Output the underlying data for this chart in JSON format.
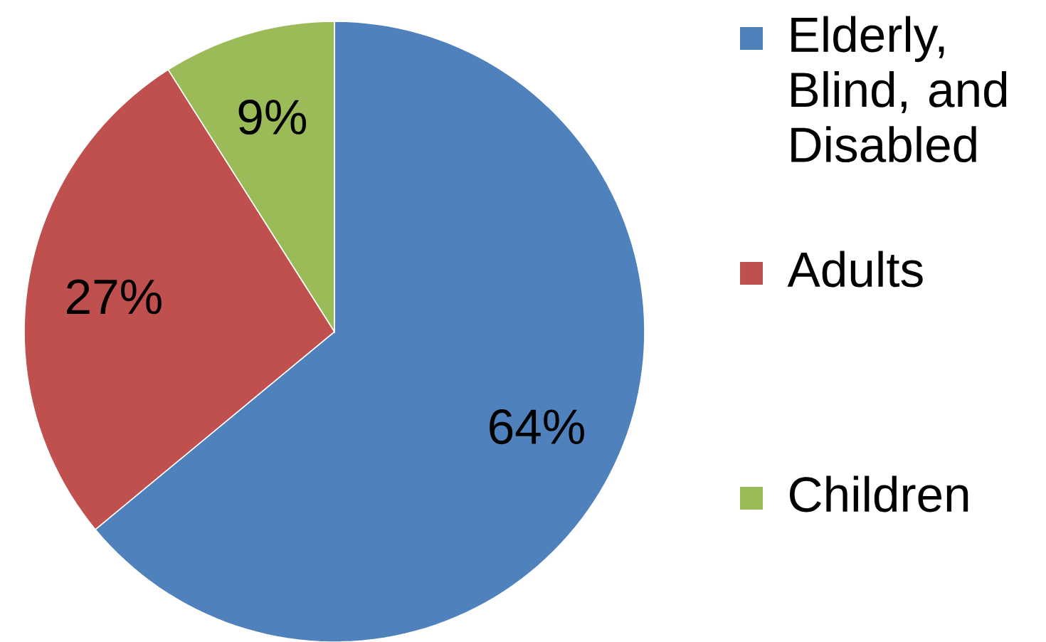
{
  "chart_data": {
    "type": "pie",
    "categories": [
      "Elderly, Blind, and Disabled",
      "Adults",
      "Children"
    ],
    "values": [
      64,
      27,
      9
    ],
    "colors": [
      "#4f81bd",
      "#c0504d",
      "#9bbb59"
    ],
    "value_labels": [
      "64%",
      "27%",
      "9%"
    ],
    "legend": "right"
  }
}
